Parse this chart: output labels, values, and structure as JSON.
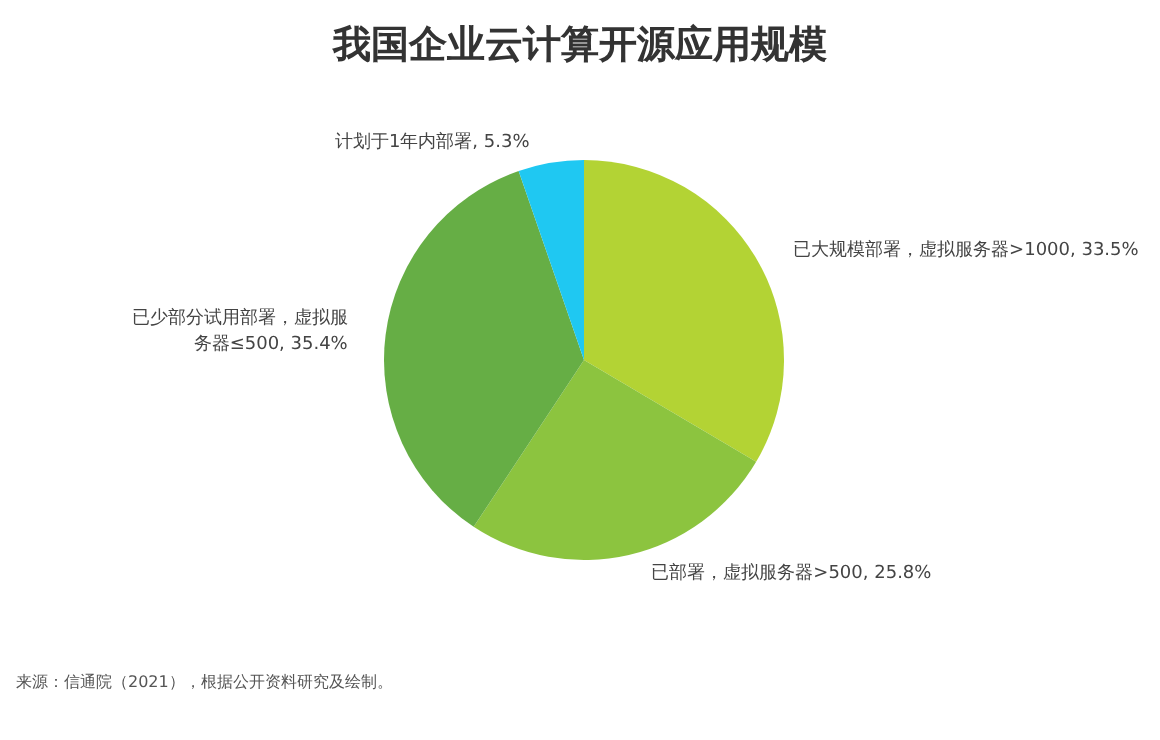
{
  "chart_data": {
    "type": "pie",
    "title": "我国企业云计算开源应用规模",
    "categories": [
      "已大规模部署，虚拟服务器>1000",
      "已部署，虚拟服务器>500",
      "已少部分试用部署，虚拟服务器≤500",
      "计划于1年内部署"
    ],
    "values": [
      33.5,
      25.8,
      35.4,
      5.3
    ],
    "colors": [
      "#b3d334",
      "#8cc43f",
      "#66ae45",
      "#1fc8f2"
    ],
    "value_labels": [
      "33.5%",
      "25.8%",
      "35.4%",
      "5.3%"
    ],
    "legend": false,
    "annotations": [
      "来源：信通院（2021），根据公开资料研究及绘制。"
    ]
  }
}
